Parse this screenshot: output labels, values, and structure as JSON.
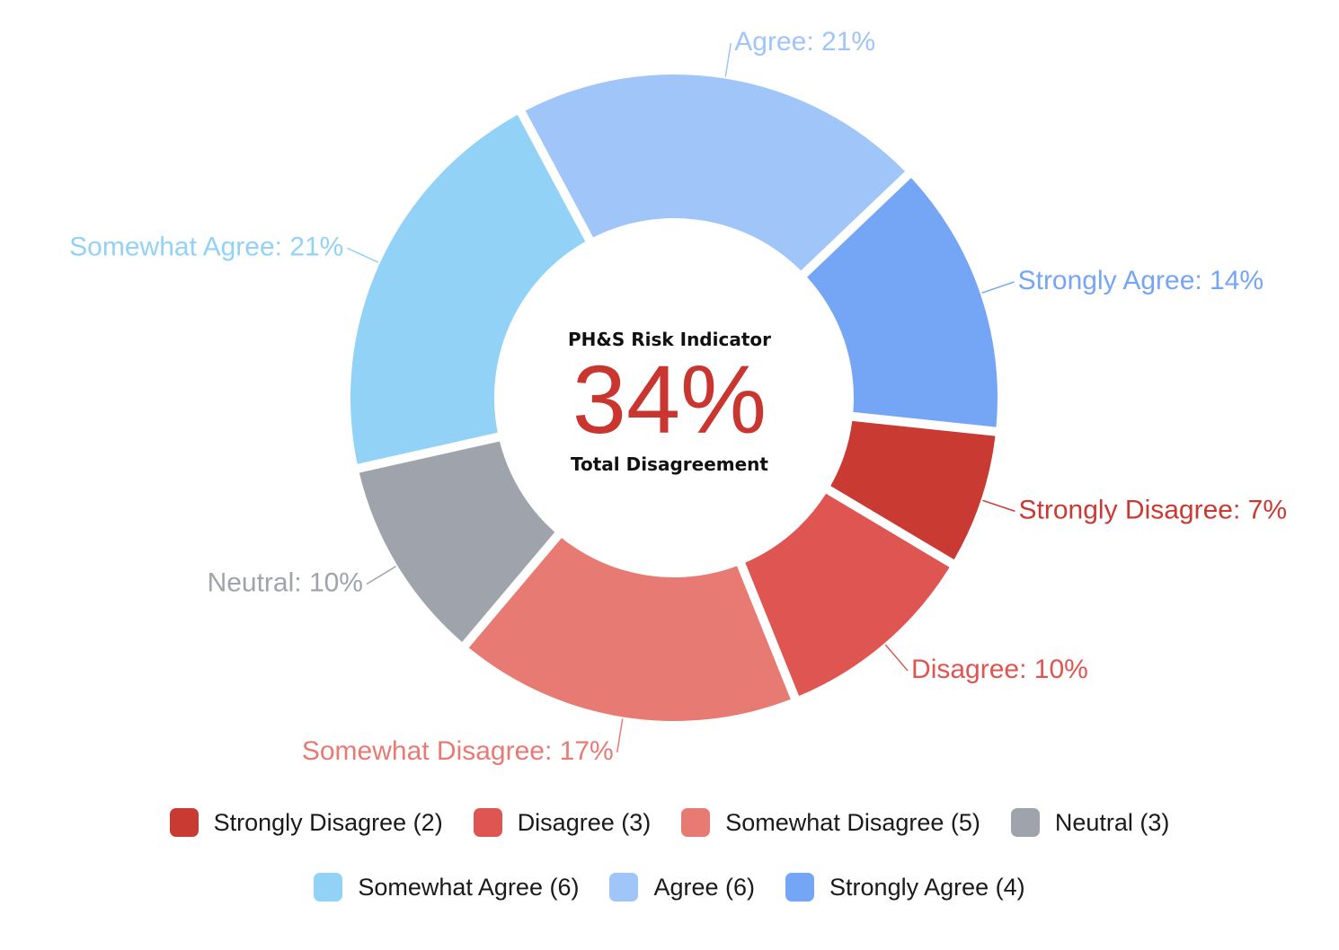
{
  "chart_data": {
    "type": "pie",
    "donut": true,
    "start_angle_deg": 96,
    "categories": [
      "Strongly Disagree",
      "Disagree",
      "Somewhat Disagree",
      "Neutral",
      "Somewhat Agree",
      "Agree",
      "Strongly Agree"
    ],
    "counts": [
      2,
      3,
      5,
      3,
      6,
      6,
      4
    ],
    "percentages": [
      7,
      10,
      17,
      10,
      21,
      21,
      14
    ],
    "colors": [
      "#c93a33",
      "#df5551",
      "#e87a74",
      "#9fa3ab",
      "#93d2f7",
      "#a0c5f8",
      "#74a6f5"
    ],
    "slice_labels": [
      "Strongly Disagree: 7%",
      "Disagree: 10%",
      "Somewhat Disagree: 17%",
      "Neutral: 10%",
      "Somewhat Agree: 21%",
      "Agree: 21%",
      "Strongly Agree: 14%"
    ],
    "legend": {
      "placement": "bottom",
      "rows": [
        [
          {
            "label": "Strongly Disagree (2)",
            "color": "#c93a33"
          },
          {
            "label": "Disagree (3)",
            "color": "#df5551"
          },
          {
            "label": "Somewhat Disagree (5)",
            "color": "#e87a74"
          },
          {
            "label": "Neutral (3)",
            "color": "#9fa3ab"
          }
        ],
        [
          {
            "label": "Somewhat Agree (6)",
            "color": "#93d2f7"
          },
          {
            "label": "Agree (6)",
            "color": "#a0c5f8"
          },
          {
            "label": "Strongly Agree (4)",
            "color": "#74a6f5"
          }
        ]
      ]
    },
    "center": {
      "title": "PH&S Risk Indicator",
      "value": "34%",
      "subtitle": "Total Disagreement",
      "value_color": "#c9352f"
    }
  }
}
